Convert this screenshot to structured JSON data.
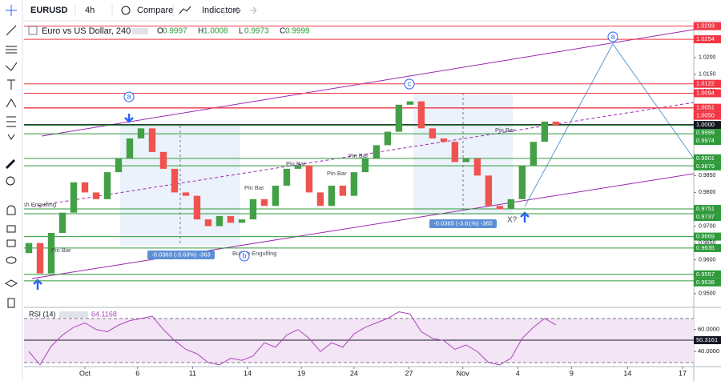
{
  "toolbar": {
    "symbol": "EURUSD",
    "interval": "4h",
    "compare": "Compare",
    "indicators": "Indicators"
  },
  "chart_data": [
    {
      "type": "candlestick",
      "title": "Euro vs US Dollar, 240",
      "ohlc": [
        {
          "label": "O",
          "value": 0.9997
        },
        {
          "label": "H",
          "value": 1.0008
        },
        {
          "label": "L",
          "value": 0.9973
        },
        {
          "label": "C",
          "value": 0.9999
        }
      ],
      "up_color": "#43a047",
      "down_color": "#ef5350",
      "open": [
        0.962,
        0.965,
        0.956,
        0.968,
        0.974,
        0.983,
        0.98,
        0.978,
        0.986,
        0.99,
        0.996,
        0.999,
        0.992,
        0.987,
        0.98,
        0.979,
        0.972,
        0.97,
        0.973,
        0.971,
        0.972,
        0.978,
        0.976,
        0.982,
        0.987,
        0.988,
        0.98,
        0.976,
        0.982,
        0.979,
        0.986,
        0.99,
        0.994,
        0.998,
        1.006,
        1.007,
        0.999,
        0.996,
        0.995,
        0.989,
        0.99,
        0.985,
        0.976,
        0.975,
        0.978,
        0.988,
        0.995,
        1.001
      ],
      "close": [
        0.965,
        0.956,
        0.968,
        0.974,
        0.983,
        0.98,
        0.978,
        0.986,
        0.99,
        0.996,
        0.999,
        0.992,
        0.987,
        0.98,
        0.979,
        0.972,
        0.97,
        0.973,
        0.971,
        0.972,
        0.978,
        0.976,
        0.982,
        0.987,
        0.988,
        0.98,
        0.976,
        0.982,
        0.979,
        0.986,
        0.99,
        0.994,
        0.998,
        1.006,
        1.007,
        0.999,
        0.996,
        0.995,
        0.989,
        0.99,
        0.985,
        0.976,
        0.975,
        0.978,
        0.988,
        0.995,
        1.001,
        0.9999
      ],
      "xlim": [
        -0.43,
        59.3
      ],
      "xticks": [
        {
          "value": 5,
          "label": "Oct"
        },
        {
          "value": 9.7,
          "label": "6"
        },
        {
          "value": 14.6,
          "label": "11"
        },
        {
          "value": 19.5,
          "label": "14"
        },
        {
          "value": 24.3,
          "label": "19"
        },
        {
          "value": 29,
          "label": "24"
        },
        {
          "value": 33.9,
          "label": "27"
        },
        {
          "value": 38.7,
          "label": "Nov"
        },
        {
          "value": 43.6,
          "label": "4"
        },
        {
          "value": 48.4,
          "label": "9"
        },
        {
          "value": 53.4,
          "label": "14"
        },
        {
          "value": 58.3,
          "label": "17"
        }
      ],
      "ylim": [
        0.9464,
        1.0304
      ],
      "yticks": [
        {
          "value": 0.95,
          "label": "0.9500"
        },
        {
          "value": 0.955,
          "label": "0.9550"
        },
        {
          "value": 0.96,
          "label": "0.9600"
        },
        {
          "value": 0.965,
          "label": "0.9650"
        },
        {
          "value": 0.97,
          "label": "0.9700"
        },
        {
          "value": 0.975,
          "label": "0.9750"
        },
        {
          "value": 0.98,
          "label": "0.9800"
        },
        {
          "value": 0.985,
          "label": "0.9850"
        },
        {
          "value": 0.99,
          "label": "0.9900"
        },
        {
          "value": 0.995,
          "label": "0.9950"
        },
        {
          "value": 1.005,
          "label": "1.0050"
        },
        {
          "value": 1.01,
          "label": "1.0100"
        },
        {
          "value": 1.015,
          "label": "1.0150"
        },
        {
          "value": 1.02,
          "label": "1.0200"
        }
      ],
      "levels": [
        {
          "value": 1.0293,
          "label": "1.0293",
          "color": "#f23645"
        },
        {
          "value": 1.0254,
          "label": "1.0254",
          "color": "#f23645"
        },
        {
          "value": 1.0122,
          "label": "1.0122",
          "color": "#f23645"
        },
        {
          "value": 1.0094,
          "label": "1.0094",
          "color": "#f23645"
        },
        {
          "value": 1.005,
          "label": "1.0050",
          "color": "#f23645"
        },
        {
          "value": 1.0051,
          "label": "1.0051",
          "color": "#f23645"
        },
        {
          "value": 1,
          "label": "1.0000",
          "color": "#131722"
        },
        {
          "value": 0.9999,
          "label": "0.9999",
          "color": "#2e9a3a"
        },
        {
          "value": 0.9974,
          "label": "0.9974",
          "color": "#2e9a3a"
        },
        {
          "value": 0.9901,
          "label": "0.9901",
          "color": "#2e9a3a"
        },
        {
          "value": 0.9879,
          "label": "0.9879",
          "color": "#2e9a3a"
        },
        {
          "value": 0.9751,
          "label": "0.9751",
          "color": "#2e9a3a"
        },
        {
          "value": 0.9737,
          "label": "0.9737",
          "color": "#2e9a3a"
        },
        {
          "value": 0.9669,
          "label": "0.9669",
          "color": "#2e9a3a"
        },
        {
          "value": 0.9635,
          "label": "0.9635",
          "color": "#2e9a3a"
        },
        {
          "value": 0.9557,
          "label": "0.9557",
          "color": "#2e9a3a"
        },
        {
          "value": 0.9538,
          "label": "0.9538",
          "color": "#2e9a3a"
        }
      ],
      "annotations": [
        "Bullish Engulfing",
        "Pin Bar",
        "Pin Bar",
        "Pin Bar",
        "Pin Bar",
        "Pin Bar",
        "Pin Bar",
        "Bullish Engulfing",
        "X?",
        "a",
        "b",
        "c",
        "a",
        "-0.0363 (-3.63%) -363",
        "-0.0365 (-3.61%) -365"
      ]
    },
    {
      "type": "line",
      "title": "RSI (14)",
      "color": "#ab47bc",
      "values": [
        40,
        28,
        45,
        55,
        62,
        66,
        60,
        58,
        64,
        68,
        70,
        72,
        60,
        50,
        42,
        38,
        30,
        28,
        34,
        32,
        36,
        48,
        44,
        55,
        60,
        52,
        40,
        48,
        44,
        56,
        62,
        66,
        70,
        76,
        74,
        58,
        52,
        50,
        42,
        46,
        40,
        30,
        28,
        34,
        52,
        62,
        70,
        64.1168
      ],
      "ylim": [
        26.4,
        78.6
      ],
      "yticks": [
        {
          "value": 40,
          "label": "40.0000"
        },
        {
          "value": 60,
          "label": "60.0000"
        }
      ],
      "bands": [
        30,
        70
      ],
      "hline": 50.3161
    }
  ]
}
